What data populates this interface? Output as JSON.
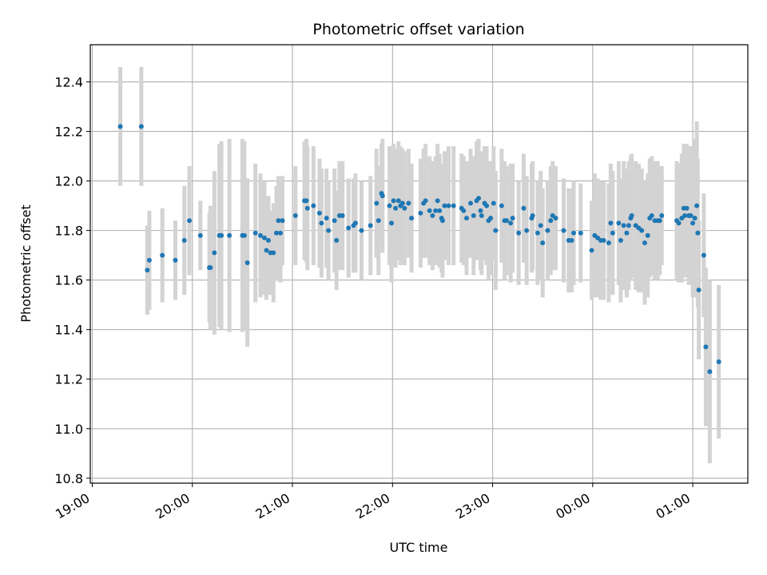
{
  "chart_data": {
    "type": "scatter",
    "title": "Photometric offset variation",
    "xlabel": "UTC time",
    "ylabel": "Photometric offset",
    "x_unit": "hours (UTC, continuing past midnight)",
    "xlim": [
      18.98,
      25.55
    ],
    "ylim": [
      10.78,
      12.55
    ],
    "grid": true,
    "colors": {
      "marker": "#1f77b4",
      "errorbar": "#d3d3d3",
      "grid": "#b0b0b0",
      "axes": "#000000"
    },
    "x_ticks": [
      {
        "value": 19,
        "label": "19:00"
      },
      {
        "value": 20,
        "label": "20:00"
      },
      {
        "value": 21,
        "label": "21:00"
      },
      {
        "value": 22,
        "label": "22:00"
      },
      {
        "value": 23,
        "label": "23:00"
      },
      {
        "value": 24,
        "label": "00:00"
      },
      {
        "value": 25,
        "label": "01:00"
      }
    ],
    "y_ticks": [
      {
        "value": 10.8,
        "label": "10.8"
      },
      {
        "value": 11.0,
        "label": "11.0"
      },
      {
        "value": 11.2,
        "label": "11.2"
      },
      {
        "value": 11.4,
        "label": "11.4"
      },
      {
        "value": 11.6,
        "label": "11.6"
      },
      {
        "value": 11.8,
        "label": "11.8"
      },
      {
        "value": 12.0,
        "label": "12.0"
      },
      {
        "value": 12.2,
        "label": "12.2"
      },
      {
        "value": 12.4,
        "label": "12.4"
      }
    ],
    "points": [
      [
        19.28,
        12.22,
        0.24
      ],
      [
        19.49,
        12.22,
        0.24
      ],
      [
        19.55,
        11.64,
        0.18
      ],
      [
        19.57,
        11.68,
        0.2
      ],
      [
        19.7,
        11.7,
        0.19
      ],
      [
        19.83,
        11.68,
        0.16
      ],
      [
        19.92,
        11.76,
        0.22
      ],
      [
        19.97,
        11.84,
        0.22
      ],
      [
        20.08,
        11.78,
        0.14
      ],
      [
        20.17,
        11.65,
        0.22
      ],
      [
        20.18,
        11.65,
        0.25
      ],
      [
        20.22,
        11.71,
        0.33
      ],
      [
        20.27,
        11.78,
        0.37
      ],
      [
        20.29,
        11.78,
        0.38
      ],
      [
        20.37,
        11.78,
        0.39
      ],
      [
        20.5,
        11.78,
        0.39
      ],
      [
        20.52,
        11.78,
        0.38
      ],
      [
        20.55,
        11.67,
        0.34
      ],
      [
        20.63,
        11.79,
        0.28
      ],
      [
        20.68,
        11.78,
        0.25
      ],
      [
        20.72,
        11.77,
        0.23
      ],
      [
        20.74,
        11.72,
        0.2
      ],
      [
        20.76,
        11.76,
        0.18
      ],
      [
        20.78,
        11.71,
        0.17
      ],
      [
        20.81,
        11.71,
        0.2
      ],
      [
        20.84,
        11.79,
        0.19
      ],
      [
        20.86,
        11.84,
        0.18
      ],
      [
        20.88,
        11.79,
        0.2
      ],
      [
        20.9,
        11.84,
        0.18
      ],
      [
        21.03,
        11.86,
        0.2
      ],
      [
        21.12,
        11.92,
        0.24
      ],
      [
        21.14,
        11.92,
        0.25
      ],
      [
        21.15,
        11.89,
        0.25
      ],
      [
        21.21,
        11.9,
        0.24
      ],
      [
        21.27,
        11.87,
        0.22
      ],
      [
        21.29,
        11.83,
        0.22
      ],
      [
        21.34,
        11.85,
        0.2
      ],
      [
        21.36,
        11.8,
        0.2
      ],
      [
        21.42,
        11.84,
        0.21
      ],
      [
        21.44,
        11.76,
        0.2
      ],
      [
        21.47,
        11.86,
        0.22
      ],
      [
        21.5,
        11.86,
        0.22
      ],
      [
        21.56,
        11.81,
        0.2
      ],
      [
        21.61,
        11.82,
        0.19
      ],
      [
        21.63,
        11.83,
        0.2
      ],
      [
        21.69,
        11.8,
        0.2
      ],
      [
        21.78,
        11.82,
        0.2
      ],
      [
        21.84,
        11.91,
        0.22
      ],
      [
        21.86,
        11.84,
        0.22
      ],
      [
        21.89,
        11.95,
        0.2
      ],
      [
        21.9,
        11.94,
        0.23
      ],
      [
        21.97,
        11.9,
        0.24
      ],
      [
        21.99,
        11.83,
        0.24
      ],
      [
        22.01,
        11.92,
        0.23
      ],
      [
        22.03,
        11.89,
        0.24
      ],
      [
        22.06,
        11.92,
        0.24
      ],
      [
        22.08,
        11.9,
        0.24
      ],
      [
        22.1,
        11.91,
        0.22
      ],
      [
        22.12,
        11.89,
        0.23
      ],
      [
        22.16,
        11.91,
        0.22
      ],
      [
        22.19,
        11.85,
        0.22
      ],
      [
        22.28,
        11.87,
        0.22
      ],
      [
        22.31,
        11.91,
        0.22
      ],
      [
        22.33,
        11.92,
        0.23
      ],
      [
        22.37,
        11.88,
        0.22
      ],
      [
        22.4,
        11.86,
        0.22
      ],
      [
        22.43,
        11.88,
        0.22
      ],
      [
        22.45,
        11.92,
        0.23
      ],
      [
        22.47,
        11.88,
        0.23
      ],
      [
        22.49,
        11.85,
        0.22
      ],
      [
        22.5,
        11.84,
        0.23
      ],
      [
        22.52,
        11.9,
        0.22
      ],
      [
        22.56,
        11.9,
        0.24
      ],
      [
        22.61,
        11.9,
        0.24
      ],
      [
        22.69,
        11.89,
        0.22
      ],
      [
        22.71,
        11.88,
        0.22
      ],
      [
        22.74,
        11.85,
        0.23
      ],
      [
        22.78,
        11.91,
        0.22
      ],
      [
        22.81,
        11.86,
        0.24
      ],
      [
        22.84,
        11.92,
        0.24
      ],
      [
        22.86,
        11.93,
        0.24
      ],
      [
        22.88,
        11.88,
        0.24
      ],
      [
        22.89,
        11.86,
        0.24
      ],
      [
        22.92,
        11.91,
        0.23
      ],
      [
        22.94,
        11.9,
        0.24
      ],
      [
        22.96,
        11.84,
        0.24
      ],
      [
        22.98,
        11.85,
        0.23
      ],
      [
        23.01,
        11.91,
        0.23
      ],
      [
        23.03,
        11.8,
        0.24
      ],
      [
        23.09,
        11.9,
        0.23
      ],
      [
        23.12,
        11.84,
        0.24
      ],
      [
        23.14,
        11.84,
        0.22
      ],
      [
        23.18,
        11.83,
        0.24
      ],
      [
        23.2,
        11.85,
        0.22
      ],
      [
        23.26,
        11.79,
        0.21
      ],
      [
        23.31,
        11.89,
        0.22
      ],
      [
        23.34,
        11.8,
        0.22
      ],
      [
        23.39,
        11.85,
        0.22
      ],
      [
        23.4,
        11.86,
        0.22
      ],
      [
        23.45,
        11.79,
        0.21
      ],
      [
        23.48,
        11.82,
        0.22
      ],
      [
        23.5,
        11.75,
        0.22
      ],
      [
        23.55,
        11.8,
        0.2
      ],
      [
        23.58,
        11.84,
        0.22
      ],
      [
        23.6,
        11.86,
        0.22
      ],
      [
        23.63,
        11.85,
        0.21
      ],
      [
        23.71,
        11.8,
        0.21
      ],
      [
        23.76,
        11.76,
        0.21
      ],
      [
        23.79,
        11.76,
        0.21
      ],
      [
        23.81,
        11.79,
        0.21
      ],
      [
        23.88,
        11.79,
        0.2
      ],
      [
        23.99,
        11.72,
        0.2
      ],
      [
        24.02,
        11.78,
        0.25
      ],
      [
        24.05,
        11.77,
        0.24
      ],
      [
        24.08,
        11.76,
        0.24
      ],
      [
        24.11,
        11.76,
        0.24
      ],
      [
        24.16,
        11.75,
        0.24
      ],
      [
        24.18,
        11.83,
        0.24
      ],
      [
        24.2,
        11.79,
        0.25
      ],
      [
        24.26,
        11.83,
        0.25
      ],
      [
        24.28,
        11.76,
        0.25
      ],
      [
        24.31,
        11.82,
        0.26
      ],
      [
        24.34,
        11.79,
        0.26
      ],
      [
        24.36,
        11.82,
        0.26
      ],
      [
        24.38,
        11.85,
        0.25
      ],
      [
        24.39,
        11.86,
        0.25
      ],
      [
        24.43,
        11.82,
        0.26
      ],
      [
        24.46,
        11.81,
        0.26
      ],
      [
        24.49,
        11.8,
        0.25
      ],
      [
        24.52,
        11.75,
        0.25
      ],
      [
        24.55,
        11.78,
        0.25
      ],
      [
        24.57,
        11.85,
        0.24
      ],
      [
        24.59,
        11.86,
        0.24
      ],
      [
        24.62,
        11.84,
        0.24
      ],
      [
        24.65,
        11.84,
        0.24
      ],
      [
        24.67,
        11.84,
        0.22
      ],
      [
        24.69,
        11.86,
        0.2
      ],
      [
        24.84,
        11.84,
        0.24
      ],
      [
        24.86,
        11.83,
        0.24
      ],
      [
        24.89,
        11.85,
        0.26
      ],
      [
        24.91,
        11.89,
        0.26
      ],
      [
        24.92,
        11.86,
        0.25
      ],
      [
        24.94,
        11.89,
        0.26
      ],
      [
        24.96,
        11.86,
        0.28
      ],
      [
        24.98,
        11.86,
        0.28
      ],
      [
        25.0,
        11.83,
        0.3
      ],
      [
        25.02,
        11.85,
        0.32
      ],
      [
        25.04,
        11.9,
        0.34
      ],
      [
        25.05,
        11.79,
        0.3
      ],
      [
        25.06,
        11.56,
        0.28
      ],
      [
        25.11,
        11.7,
        0.25
      ],
      [
        25.13,
        11.33,
        0.32
      ],
      [
        25.17,
        11.23,
        0.37
      ],
      [
        25.26,
        11.27,
        0.31
      ]
    ]
  }
}
